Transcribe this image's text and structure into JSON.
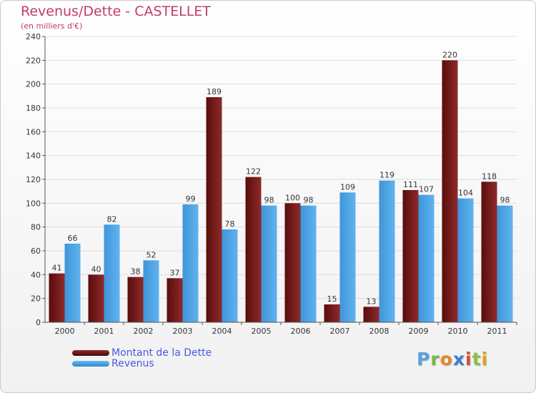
{
  "chart_data": {
    "type": "bar",
    "title": "Revenus/Dette - CASTELLET",
    "subtitle": "(en milliers d'€)",
    "categories": [
      "2000",
      "2001",
      "2002",
      "2003",
      "2004",
      "2005",
      "2006",
      "2007",
      "2008",
      "2009",
      "2010",
      "2011"
    ],
    "series": [
      {
        "name": "Montant de la Dette",
        "color": "#7a1a1a",
        "values": [
          41,
          40,
          38,
          37,
          189,
          122,
          100,
          15,
          13,
          111,
          220,
          118
        ]
      },
      {
        "name": "Revenus",
        "color": "#4aa3e6",
        "values": [
          66,
          82,
          52,
          99,
          78,
          98,
          98,
          109,
          119,
          107,
          104,
          98
        ]
      }
    ],
    "ylim": [
      0,
      240
    ],
    "yticks": [
      0,
      20,
      40,
      60,
      80,
      100,
      120,
      140,
      160,
      180,
      200,
      220,
      240
    ],
    "grid": true,
    "legend_position": "bottom-left"
  },
  "brand": {
    "logo_letters": [
      "P",
      "r",
      "o",
      "x",
      "i",
      "t",
      "i"
    ],
    "logo_colors": [
      "#5aa0de",
      "#7ab648",
      "#e8862a",
      "#3a7fd0",
      "#d94a3a",
      "#8ac044",
      "#e0a020"
    ]
  }
}
